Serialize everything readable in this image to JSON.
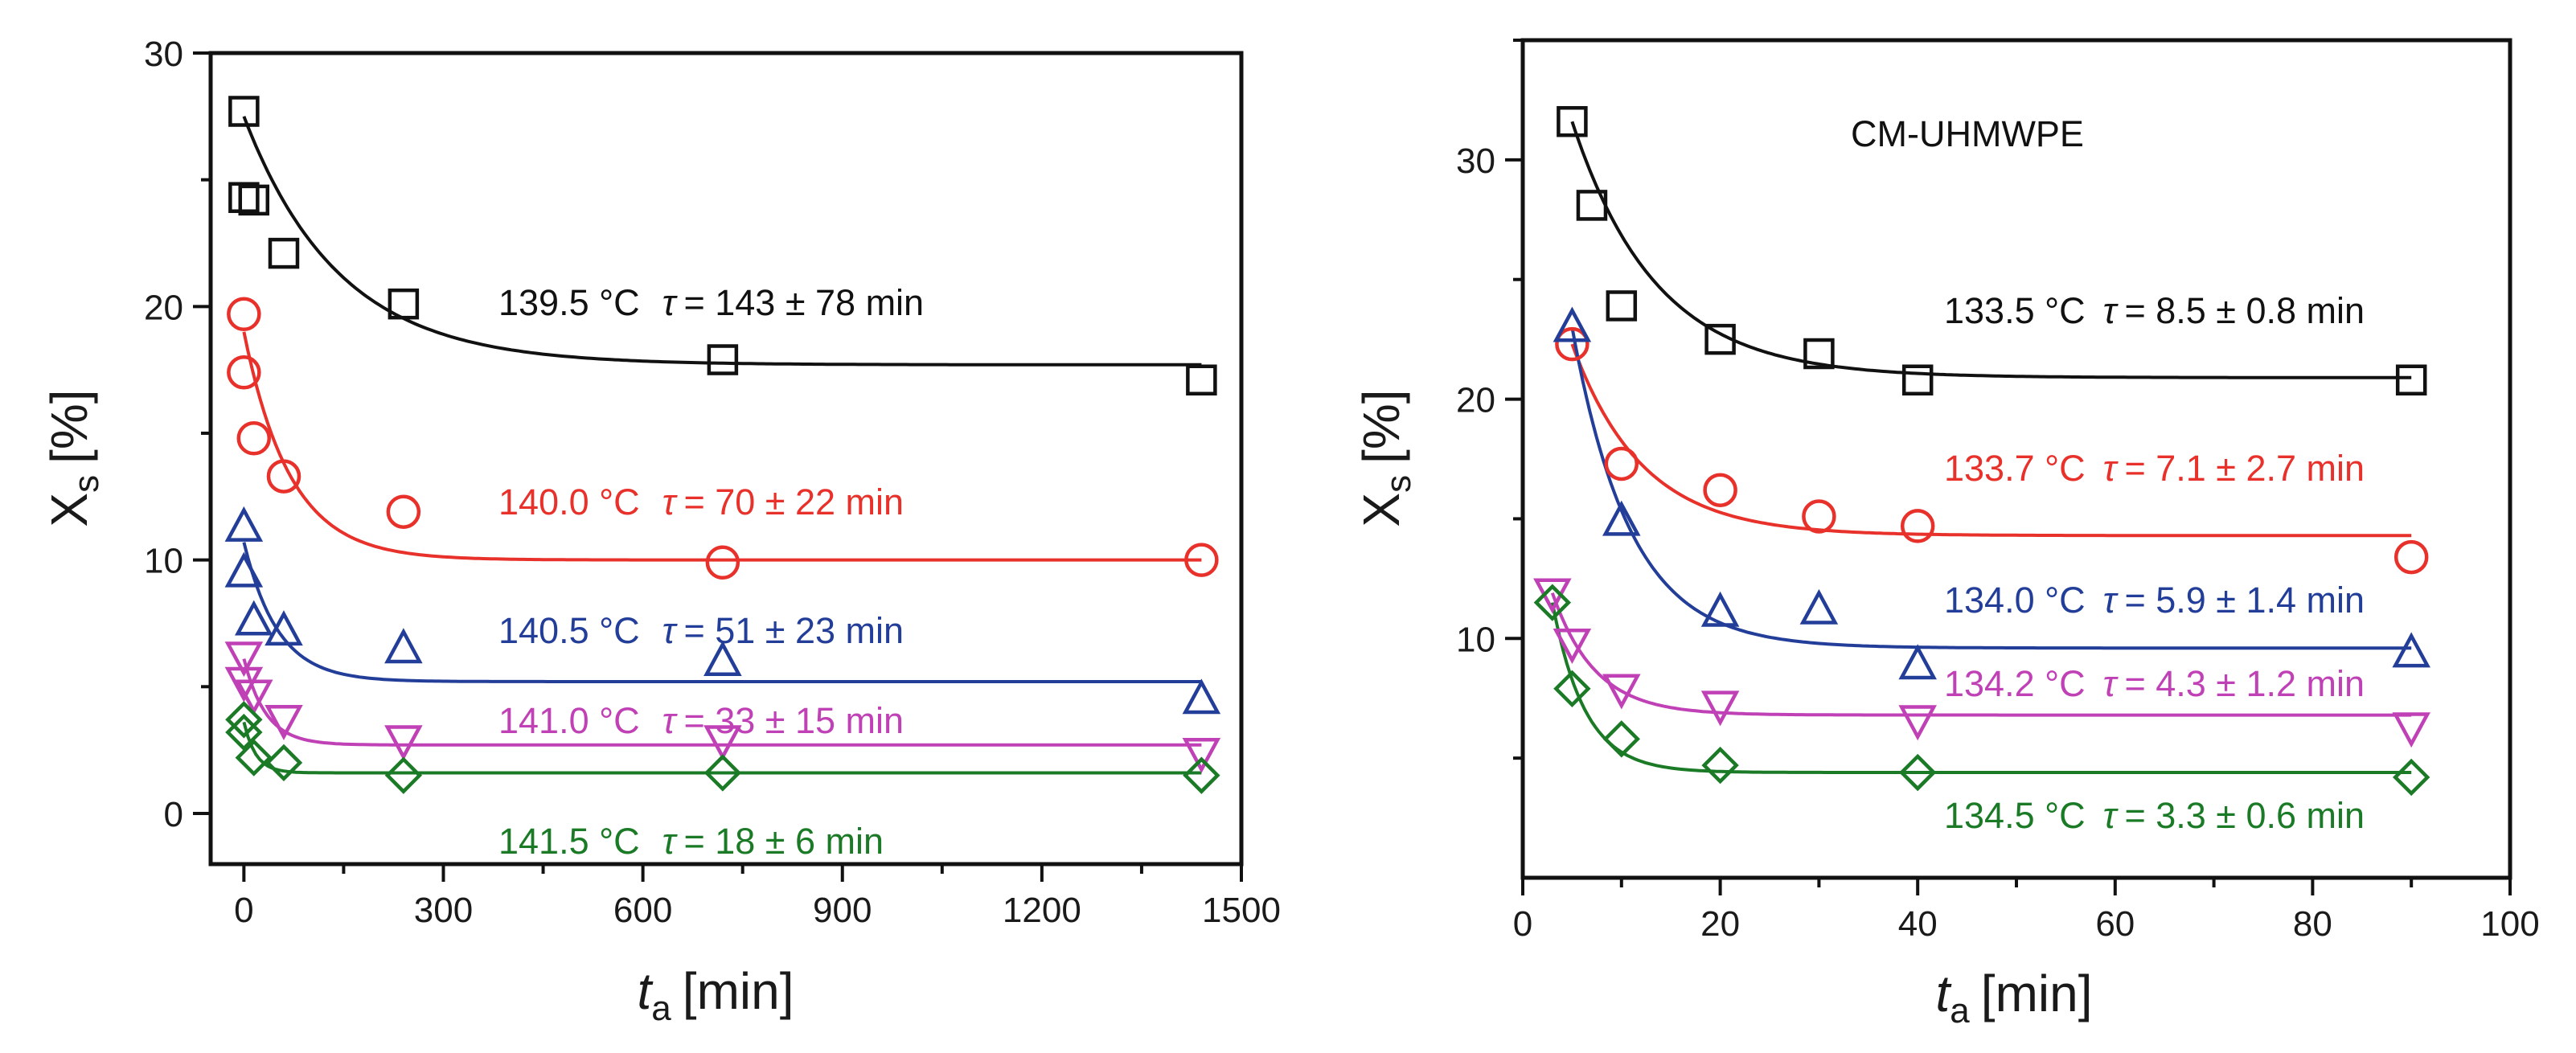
{
  "chart_data": [
    {
      "type": "scatter",
      "title": "",
      "xlabel": {
        "base": "t",
        "sub": "a",
        "unit": "[min]"
      },
      "ylabel": {
        "base": "X",
        "sub": "s",
        "unit": "[%]"
      },
      "xlim": [
        -50,
        1500
      ],
      "ylim": [
        -2,
        30
      ],
      "xticks": [
        0,
        300,
        600,
        900,
        1200,
        1500
      ],
      "xticks_minor": [
        150,
        450,
        750,
        1050,
        1350
      ],
      "yticks": [
        0,
        10,
        20,
        30
      ],
      "yticks_minor": [
        5,
        15,
        25
      ],
      "series": [
        {
          "name": "139.5 °C",
          "temp": "139.5 °C",
          "tau_text": "= 143 ± 78 min",
          "color": "#111111",
          "marker": "square",
          "points": [
            [
              0,
              27.7
            ],
            [
              0,
              24.3
            ],
            [
              15,
              24.2
            ],
            [
              60,
              22.1
            ],
            [
              240,
              20.1
            ],
            [
              720,
              17.9
            ],
            [
              1440,
              17.1
            ]
          ],
          "fit": {
            "a": 17.7,
            "b": 9.8,
            "tau": 143
          }
        },
        {
          "name": "140.0 °C",
          "temp": "140.0 °C",
          "tau_text": "= 70 ± 22 min",
          "color": "#e8312a",
          "marker": "circle",
          "points": [
            [
              0,
              19.7
            ],
            [
              0,
              17.4
            ],
            [
              15,
              14.8
            ],
            [
              60,
              13.3
            ],
            [
              240,
              11.9
            ],
            [
              720,
              9.9
            ],
            [
              1440,
              10.0
            ]
          ],
          "fit": {
            "a": 10.0,
            "b": 9.0,
            "tau": 70
          }
        },
        {
          "name": "140.5 °C",
          "temp": "140.5 °C",
          "tau_text": "= 51 ± 23 min",
          "color": "#233e99",
          "marker": "triangle",
          "points": [
            [
              0,
              11.3
            ],
            [
              0,
              9.5
            ],
            [
              15,
              7.6
            ],
            [
              60,
              7.2
            ],
            [
              240,
              6.5
            ],
            [
              720,
              6.0
            ],
            [
              1440,
              4.5
            ]
          ],
          "fit": {
            "a": 5.2,
            "b": 5.5,
            "tau": 51
          }
        },
        {
          "name": "141.0 °C",
          "temp": "141.0 °C",
          "tau_text": "= 33 ± 15 min",
          "color": "#c041b6",
          "marker": "triangle-down",
          "points": [
            [
              0,
              6.2
            ],
            [
              0,
              5.2
            ],
            [
              15,
              4.7
            ],
            [
              60,
              3.7
            ],
            [
              240,
              2.9
            ],
            [
              720,
              2.9
            ],
            [
              1440,
              2.4
            ]
          ],
          "fit": {
            "a": 2.7,
            "b": 3.4,
            "tau": 33
          }
        },
        {
          "name": "141.5 °C",
          "temp": "141.5 °C",
          "tau_text": "= 18 ± 6 min",
          "color": "#1a7a26",
          "marker": "diamond",
          "points": [
            [
              0,
              3.7
            ],
            [
              0,
              3.2
            ],
            [
              15,
              2.2
            ],
            [
              60,
              2.0
            ],
            [
              240,
              1.5
            ],
            [
              720,
              1.6
            ],
            [
              1440,
              1.5
            ]
          ],
          "fit": {
            "a": 1.6,
            "b": 2.0,
            "tau": 18
          }
        }
      ]
    },
    {
      "type": "scatter",
      "title": "CM-UHMWPE",
      "xlabel": {
        "base": "t",
        "sub": "a",
        "unit": "[min]"
      },
      "ylabel": {
        "base": "X",
        "sub": "s",
        "unit": "[%]"
      },
      "xlim": [
        0,
        100
      ],
      "ylim": [
        0,
        35
      ],
      "xticks": [
        0,
        20,
        40,
        60,
        80,
        100
      ],
      "xticks_minor": [
        10,
        30,
        50,
        70,
        90
      ],
      "yticks": [
        10,
        20,
        30
      ],
      "yticks_minor": [
        5,
        15,
        25,
        35
      ],
      "series": [
        {
          "name": "133.5 °C",
          "temp": "133.5 °C",
          "tau_text": "= 8.5 ± 0.8 min",
          "color": "#111111",
          "marker": "square",
          "points": [
            [
              5,
              31.6
            ],
            [
              7,
              28.1
            ],
            [
              10,
              23.9
            ],
            [
              20,
              22.5
            ],
            [
              30,
              21.9
            ],
            [
              40,
              20.8
            ],
            [
              90,
              20.8
            ]
          ],
          "fit": {
            "x0": 5,
            "a": 20.9,
            "b": 10.7,
            "tau": 8.5
          }
        },
        {
          "name": "133.7 °C",
          "temp": "133.7 °C",
          "tau_text": "= 7.1 ± 2.7 min",
          "color": "#e8312a",
          "marker": "circle",
          "points": [
            [
              5,
              22.3
            ],
            [
              10,
              17.3
            ],
            [
              20,
              16.2
            ],
            [
              30,
              15.1
            ],
            [
              40,
              14.7
            ],
            [
              90,
              13.4
            ]
          ],
          "fit": {
            "x0": 5,
            "a": 14.3,
            "b": 8.0,
            "tau": 7.1
          }
        },
        {
          "name": "134.0 °C",
          "temp": "134.0 °C",
          "tau_text": "= 5.9 ± 1.4 min",
          "color": "#233e99",
          "marker": "triangle",
          "points": [
            [
              5,
              23.0
            ],
            [
              10,
              14.9
            ],
            [
              20,
              11.1
            ],
            [
              30,
              11.2
            ],
            [
              40,
              8.9
            ],
            [
              90,
              9.4
            ]
          ],
          "fit": {
            "x0": 5,
            "a": 9.6,
            "b": 13.4,
            "tau": 5.9
          }
        },
        {
          "name": "134.2 °C",
          "temp": "134.2 °C",
          "tau_text": "= 4.3 ± 1.2 min",
          "color": "#c041b6",
          "marker": "triangle-down",
          "points": [
            [
              3,
              11.9
            ],
            [
              5,
              9.8
            ],
            [
              10,
              7.9
            ],
            [
              20,
              7.2
            ],
            [
              40,
              6.6
            ],
            [
              90,
              6.3
            ]
          ],
          "fit": {
            "x0": 3,
            "a": 6.8,
            "b": 5.1,
            "tau": 4.3
          }
        },
        {
          "name": "134.5 °C",
          "temp": "134.5 °C",
          "tau_text": "= 3.3 ± 0.6 min",
          "color": "#1a7a26",
          "marker": "diamond",
          "points": [
            [
              3,
              11.5
            ],
            [
              5,
              7.9
            ],
            [
              10,
              5.8
            ],
            [
              20,
              4.7
            ],
            [
              40,
              4.4
            ],
            [
              90,
              4.2
            ]
          ],
          "fit": {
            "x0": 3,
            "a": 4.4,
            "b": 7.1,
            "tau": 3.3
          }
        }
      ]
    }
  ]
}
